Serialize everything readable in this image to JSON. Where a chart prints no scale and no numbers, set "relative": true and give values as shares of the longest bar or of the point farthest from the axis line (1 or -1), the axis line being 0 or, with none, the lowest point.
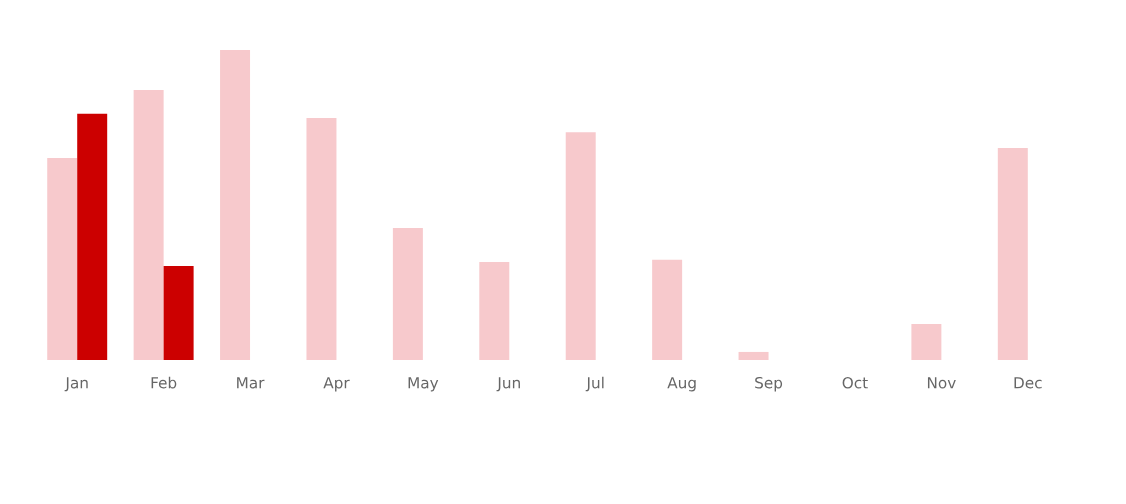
{
  "chart_data": {
    "type": "bar",
    "relative": true,
    "categories": [
      "Jan",
      "Feb",
      "Mar",
      "Apr",
      "May",
      "Jun",
      "Jul",
      "Aug",
      "Sep",
      "Oct",
      "Nov",
      "Dec"
    ],
    "series": [
      {
        "color": "#f7c9cc",
        "values": [
          0.652,
          0.871,
          1,
          0.781,
          0.426,
          0.316,
          0.735,
          0.323,
          0.026,
          0,
          0.116,
          0.684
        ]
      },
      {
        "color": "#cc0000",
        "values": [
          0.794,
          0.303,
          null,
          null,
          null,
          null,
          null,
          null,
          null,
          null,
          null,
          null
        ]
      }
    ],
    "grid": false,
    "legend": false
  }
}
